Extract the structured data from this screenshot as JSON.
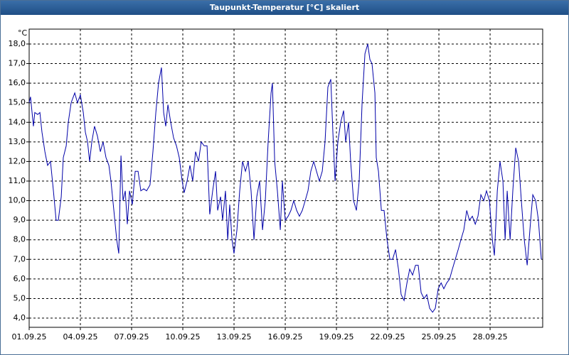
{
  "chart_data": {
    "type": "line",
    "title": "Taupunkt-Temperatur [°C] skaliert",
    "y_label": "°C",
    "xlim": [
      0,
      30.08
    ],
    "ylim": [
      3.53,
      18.76
    ],
    "grid": true,
    "xticks": [
      {
        "value": 0,
        "label": "01.09.25"
      },
      {
        "value": 3,
        "label": "04.09.25"
      },
      {
        "value": 6,
        "label": "07.09.25"
      },
      {
        "value": 9,
        "label": "10.09.25"
      },
      {
        "value": 12,
        "label": "13.09.25"
      },
      {
        "value": 15,
        "label": "16.09.25"
      },
      {
        "value": 18,
        "label": "19.09.25"
      },
      {
        "value": 21,
        "label": "22.09.25"
      },
      {
        "value": 24,
        "label": "25.09.25"
      },
      {
        "value": 27,
        "label": "28.09.25"
      }
    ],
    "yticks": [
      {
        "value": 4,
        "label": "4,0"
      },
      {
        "value": 5,
        "label": "5,0"
      },
      {
        "value": 6,
        "label": "6,0"
      },
      {
        "value": 7,
        "label": "7,0"
      },
      {
        "value": 8,
        "label": "8,0"
      },
      {
        "value": 9,
        "label": "9,0"
      },
      {
        "value": 10,
        "label": "10,0"
      },
      {
        "value": 11,
        "label": "11,0"
      },
      {
        "value": 12,
        "label": "12,0"
      },
      {
        "value": 13,
        "label": "13,0"
      },
      {
        "value": 14,
        "label": "14,0"
      },
      {
        "value": 15,
        "label": "15,0"
      },
      {
        "value": 16,
        "label": "16,0"
      },
      {
        "value": 17,
        "label": "17,0"
      },
      {
        "value": 18,
        "label": "18,0"
      }
    ],
    "series": [
      {
        "color": "#0000a8",
        "x": [
          0,
          0.08,
          0.25,
          0.33,
          0.5,
          0.63,
          0.75,
          0.92,
          1.08,
          1.25,
          1.42,
          1.58,
          1.71,
          1.88,
          2.0,
          2.17,
          2.29,
          2.46,
          2.67,
          2.83,
          3.0,
          3.17,
          3.29,
          3.42,
          3.54,
          3.67,
          3.83,
          4.0,
          4.17,
          4.33,
          4.5,
          4.67,
          4.79,
          4.96,
          5.13,
          5.25,
          5.38,
          5.5,
          5.63,
          5.75,
          5.88,
          6.04,
          6.21,
          6.38,
          6.54,
          6.71,
          6.88,
          7.08,
          7.25,
          7.42,
          7.58,
          7.75,
          7.88,
          8.0,
          8.13,
          8.29,
          8.46,
          8.63,
          8.79,
          8.96,
          9.08,
          9.25,
          9.42,
          9.58,
          9.75,
          9.92,
          10.08,
          10.25,
          10.42,
          10.58,
          10.75,
          10.92,
          11.04,
          11.21,
          11.33,
          11.5,
          11.63,
          11.75,
          11.88,
          12.0,
          12.17,
          12.33,
          12.5,
          12.67,
          12.83,
          13.0,
          13.17,
          13.33,
          13.5,
          13.67,
          13.83,
          14.0,
          14.17,
          14.25,
          14.38,
          14.54,
          14.71,
          14.83,
          15.0,
          15.17,
          15.33,
          15.5,
          15.67,
          15.83,
          16.0,
          16.17,
          16.33,
          16.5,
          16.67,
          16.83,
          17.0,
          17.17,
          17.33,
          17.5,
          17.67,
          17.79,
          17.92,
          18.08,
          18.25,
          18.42,
          18.54,
          18.71,
          18.83,
          19.0,
          19.17,
          19.33,
          19.5,
          19.67,
          19.83,
          19.96,
          20.08,
          20.25,
          20.33,
          20.46,
          20.63,
          20.79,
          20.96,
          21.13,
          21.29,
          21.46,
          21.63,
          21.79,
          21.96,
          22.13,
          22.29,
          22.46,
          22.63,
          22.79,
          22.96,
          23.13,
          23.29,
          23.46,
          23.63,
          23.79,
          23.96,
          24.13,
          24.29,
          24.46,
          24.63,
          24.79,
          24.96,
          25.13,
          25.29,
          25.46,
          25.63,
          25.79,
          25.96,
          26.13,
          26.29,
          26.46,
          26.63,
          26.79,
          26.96,
          27.13,
          27.25,
          27.42,
          27.58,
          27.75,
          27.88,
          28.0,
          28.17,
          28.33,
          28.5,
          28.67,
          28.83,
          29.0,
          29.17,
          29.33,
          29.5,
          29.67,
          29.83,
          30.0
        ],
        "values": [
          15.0,
          15.3,
          13.8,
          14.5,
          14.4,
          14.5,
          13.5,
          12.5,
          11.8,
          12.0,
          10.5,
          9.0,
          9.0,
          10.2,
          12.2,
          12.8,
          14.0,
          15.0,
          15.5,
          15.0,
          15.4,
          14.5,
          13.5,
          13.0,
          12.0,
          13.0,
          13.8,
          13.3,
          12.5,
          13.0,
          12.2,
          11.8,
          11.0,
          9.5,
          8.0,
          7.3,
          12.3,
          10.0,
          10.5,
          8.8,
          10.5,
          9.8,
          11.5,
          11.5,
          10.5,
          10.6,
          10.5,
          10.8,
          12.5,
          14.5,
          16.0,
          16.8,
          14.5,
          13.8,
          14.9,
          14.0,
          13.2,
          12.8,
          12.2,
          11.0,
          10.4,
          11.0,
          11.8,
          11.0,
          12.5,
          12.0,
          13.0,
          12.8,
          12.8,
          9.3,
          10.5,
          11.5,
          9.5,
          10.2,
          9.0,
          10.5,
          8.0,
          9.8,
          8.0,
          7.3,
          8.5,
          10.5,
          12.0,
          11.5,
          12.0,
          10.5,
          8.0,
          10.2,
          11.0,
          8.5,
          10.0,
          13.0,
          15.5,
          16.0,
          12.0,
          10.5,
          8.5,
          11.0,
          9.0,
          9.2,
          9.5,
          10.0,
          9.5,
          9.2,
          9.5,
          10.0,
          10.5,
          11.5,
          12.0,
          11.5,
          11.0,
          11.5,
          13.0,
          15.8,
          16.2,
          13.5,
          11.0,
          13.0,
          14.0,
          14.6,
          13.0,
          14.0,
          12.0,
          10.0,
          9.5,
          11.0,
          15.0,
          17.5,
          18.0,
          17.2,
          17.0,
          15.5,
          12.2,
          11.5,
          9.5,
          9.5,
          8.0,
          7.0,
          7.0,
          7.5,
          6.5,
          5.2,
          4.9,
          5.8,
          6.5,
          6.2,
          6.7,
          6.7,
          5.3,
          5.0,
          5.2,
          4.5,
          4.3,
          4.5,
          5.5,
          5.8,
          5.5,
          5.8,
          6.0,
          6.5,
          7.0,
          7.5,
          8.0,
          8.5,
          9.5,
          9.0,
          9.2,
          8.8,
          9.2,
          10.3,
          10.0,
          10.5,
          10.0,
          8.0,
          7.2,
          10.5,
          12.0,
          11.0,
          8.0,
          10.5,
          8.0,
          10.5,
          12.7,
          12.0,
          10.0,
          8.0,
          6.7,
          8.5,
          10.3,
          10.0,
          9.0,
          7.0
        ]
      }
    ]
  }
}
